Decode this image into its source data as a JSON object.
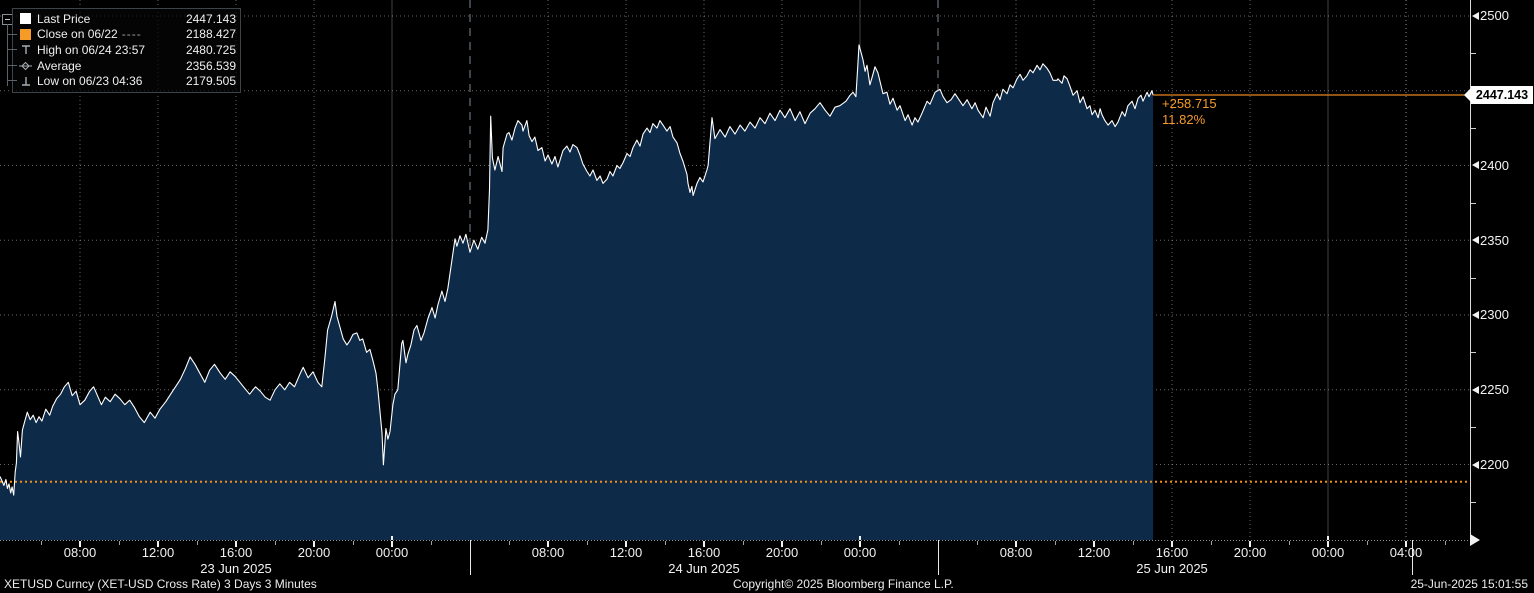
{
  "window": {
    "bg": "#000000"
  },
  "colors": {
    "accent_orange": "#f79b28",
    "close_line_orange": "#ef8d1c",
    "last_line_orange": "#e8871e",
    "area_fill_navy": "#0e2a49",
    "price_line_white": "#ffffff",
    "grid_dot": "rgba(255,255,255,0.40)",
    "midnight_line": "rgba(160,170,180,0.38)",
    "day_separator": "rgba(165,180,200,0.75)",
    "axis_white": "#f2f2f2"
  },
  "legend": {
    "rows": [
      {
        "icon": "white-square",
        "icon_color": "#ffffff",
        "label": "Last Price",
        "dashes": "",
        "value": "2447.143"
      },
      {
        "icon": "orange-square",
        "icon_color": "#f79b28",
        "label": "Close on 06/22",
        "dashes": "----",
        "value": "2188.427"
      },
      {
        "icon": "high-marker",
        "icon_color": "#a7adb5",
        "label": "High on 06/24 23:57",
        "dashes": "",
        "value": "2480.725"
      },
      {
        "icon": "average-marker",
        "icon_color": "#a7adb5",
        "label": "Average",
        "dashes": "",
        "value": "2356.539"
      },
      {
        "icon": "low-marker",
        "icon_color": "#a7adb5",
        "label": "Low on 06/23 04:36",
        "dashes": "",
        "value": "2179.505"
      }
    ]
  },
  "annotation": {
    "change": "+258.715",
    "percent": "11.82%"
  },
  "price_tag": {
    "value": "2447.143"
  },
  "footer": {
    "left": "XETUSD Curncy (XET-USD Cross Rate) 3 Days 3 Minutes",
    "center": "Copyright© 2025 Bloomberg Finance L.P.",
    "right": "25-Jun-2025 15:01:55"
  },
  "chart_data": {
    "type": "area",
    "title": "XETUSD Curncy (XET-USD Cross Rate) 3 Days 3 Minutes",
    "x_unit": "hours since 2025-06-23 00:00",
    "x_window": [
      3.9,
      79.28
    ],
    "y_window": [
      2149.5,
      2510.7
    ],
    "last_price": 2447.143,
    "close_price": 2188.427,
    "high": 2480.725,
    "high_time": "06/24 23:57",
    "average": 2356.539,
    "low": 2179.505,
    "low_time": "06/23 04:36",
    "grid": true,
    "legend_position": "top-left",
    "y_gridlines": [
      2200,
      2250,
      2300,
      2350,
      2400,
      2450,
      2500
    ],
    "y_ticks_major": [
      {
        "v": 2500,
        "label": "2500"
      },
      {
        "v": 2400,
        "label": "2400"
      },
      {
        "v": 2350,
        "label": "2350"
      },
      {
        "v": 2300,
        "label": "2300"
      },
      {
        "v": 2250,
        "label": "2250"
      },
      {
        "v": 2200,
        "label": "2200"
      }
    ],
    "y_ticks_minor": [
      2475,
      2425,
      2375,
      2325,
      2275,
      2225,
      2175
    ],
    "x_ticks": [
      {
        "t": 8,
        "label": "08:00"
      },
      {
        "t": 12,
        "label": "12:00"
      },
      {
        "t": 16,
        "label": "16:00"
      },
      {
        "t": 20,
        "label": "20:00"
      },
      {
        "t": 24,
        "label": "00:00"
      },
      {
        "t": 32,
        "label": "08:00"
      },
      {
        "t": 36,
        "label": "12:00"
      },
      {
        "t": 40,
        "label": "16:00"
      },
      {
        "t": 44,
        "label": "20:00"
      },
      {
        "t": 48,
        "label": "00:00"
      },
      {
        "t": 56,
        "label": "08:00"
      },
      {
        "t": 60,
        "label": "12:00"
      },
      {
        "t": 64,
        "label": "16:00"
      },
      {
        "t": 68,
        "label": "20:00"
      },
      {
        "t": 72,
        "label": "00:00"
      },
      {
        "t": 76,
        "label": "04:00"
      }
    ],
    "x_ticks_minor": [
      6,
      10,
      14,
      18,
      22,
      26,
      30,
      34,
      38,
      42,
      46,
      50,
      54,
      58,
      62,
      66,
      70,
      74,
      78
    ],
    "midnight_lines": [
      24,
      48,
      72
    ],
    "day_separators": [
      28,
      52
    ],
    "dotted_separators": [
      76
    ],
    "strip_separators": [
      28,
      52,
      76.3
    ],
    "date_labels": [
      {
        "t": 16,
        "label": "23 Jun 2025"
      },
      {
        "t": 40,
        "label": "24 Jun 2025"
      },
      {
        "t": 64,
        "label": "25 Jun 2025"
      }
    ],
    "series": [
      [
        3.9,
        2192
      ],
      [
        4.0,
        2189
      ],
      [
        4.1,
        2186
      ],
      [
        4.2,
        2190
      ],
      [
        4.28,
        2184
      ],
      [
        4.36,
        2187
      ],
      [
        4.45,
        2181
      ],
      [
        4.52,
        2185
      ],
      [
        4.6,
        2179.5
      ],
      [
        4.68,
        2195
      ],
      [
        4.74,
        2201
      ],
      [
        4.8,
        2222
      ],
      [
        4.87,
        2215
      ],
      [
        4.95,
        2205
      ],
      [
        5.05,
        2223
      ],
      [
        5.15,
        2228
      ],
      [
        5.3,
        2235
      ],
      [
        5.45,
        2230
      ],
      [
        5.6,
        2233
      ],
      [
        5.75,
        2228
      ],
      [
        5.9,
        2232
      ],
      [
        6.05,
        2229
      ],
      [
        6.25,
        2237
      ],
      [
        6.45,
        2233
      ],
      [
        6.6,
        2239
      ],
      [
        6.8,
        2244
      ],
      [
        7.0,
        2247
      ],
      [
        7.2,
        2252
      ],
      [
        7.4,
        2255
      ],
      [
        7.6,
        2246
      ],
      [
        7.8,
        2249
      ],
      [
        8.0,
        2240
      ],
      [
        8.25,
        2243
      ],
      [
        8.5,
        2249
      ],
      [
        8.7,
        2252
      ],
      [
        8.9,
        2246
      ],
      [
        9.1,
        2240
      ],
      [
        9.3,
        2245
      ],
      [
        9.55,
        2242
      ],
      [
        9.8,
        2247
      ],
      [
        10.05,
        2244
      ],
      [
        10.3,
        2240
      ],
      [
        10.55,
        2243
      ],
      [
        10.8,
        2238
      ],
      [
        11.05,
        2232
      ],
      [
        11.3,
        2228
      ],
      [
        11.6,
        2235
      ],
      [
        11.85,
        2231
      ],
      [
        12.1,
        2237
      ],
      [
        12.4,
        2242
      ],
      [
        12.65,
        2247
      ],
      [
        12.9,
        2252
      ],
      [
        13.15,
        2257
      ],
      [
        13.4,
        2264
      ],
      [
        13.65,
        2272
      ],
      [
        13.9,
        2267
      ],
      [
        14.15,
        2261
      ],
      [
        14.4,
        2255
      ],
      [
        14.65,
        2263
      ],
      [
        14.9,
        2267
      ],
      [
        15.2,
        2261
      ],
      [
        15.45,
        2257
      ],
      [
        15.7,
        2262
      ],
      [
        15.95,
        2259
      ],
      [
        16.2,
        2255
      ],
      [
        16.45,
        2251
      ],
      [
        16.7,
        2247
      ],
      [
        17.0,
        2252
      ],
      [
        17.25,
        2249
      ],
      [
        17.5,
        2245
      ],
      [
        17.75,
        2243
      ],
      [
        18.0,
        2250
      ],
      [
        18.25,
        2254
      ],
      [
        18.5,
        2250
      ],
      [
        18.75,
        2255
      ],
      [
        19.0,
        2252
      ],
      [
        19.3,
        2261
      ],
      [
        19.45,
        2265
      ],
      [
        19.7,
        2258
      ],
      [
        19.95,
        2262
      ],
      [
        20.2,
        2255
      ],
      [
        20.4,
        2252
      ],
      [
        20.55,
        2270
      ],
      [
        20.7,
        2290
      ],
      [
        20.9,
        2299
      ],
      [
        21.08,
        2309
      ],
      [
        21.18,
        2299
      ],
      [
        21.33,
        2292
      ],
      [
        21.5,
        2284
      ],
      [
        21.69,
        2280
      ],
      [
        21.85,
        2283
      ],
      [
        22.0,
        2287
      ],
      [
        22.2,
        2288
      ],
      [
        22.35,
        2283
      ],
      [
        22.5,
        2284
      ],
      [
        22.7,
        2275
      ],
      [
        22.87,
        2277
      ],
      [
        23.03,
        2269
      ],
      [
        23.18,
        2261
      ],
      [
        23.28,
        2250
      ],
      [
        23.38,
        2236
      ],
      [
        23.49,
        2221
      ],
      [
        23.56,
        2199.8
      ],
      [
        23.69,
        2224
      ],
      [
        23.79,
        2217
      ],
      [
        23.9,
        2222
      ],
      [
        24.05,
        2240
      ],
      [
        24.15,
        2247
      ],
      [
        24.3,
        2250
      ],
      [
        24.5,
        2281
      ],
      [
        24.56,
        2283
      ],
      [
        24.72,
        2268
      ],
      [
        24.82,
        2274
      ],
      [
        24.97,
        2280
      ],
      [
        25.13,
        2290
      ],
      [
        25.28,
        2293
      ],
      [
        25.49,
        2283
      ],
      [
        25.64,
        2288
      ],
      [
        25.85,
        2298
      ],
      [
        26.05,
        2305
      ],
      [
        26.21,
        2298
      ],
      [
        26.36,
        2307
      ],
      [
        26.56,
        2316
      ],
      [
        26.72,
        2309
      ],
      [
        26.87,
        2318
      ],
      [
        27.08,
        2337
      ],
      [
        27.23,
        2351
      ],
      [
        27.33,
        2346
      ],
      [
        27.49,
        2353
      ],
      [
        27.64,
        2348
      ],
      [
        27.79,
        2354
      ],
      [
        28.0,
        2342
      ],
      [
        28.2,
        2350
      ],
      [
        28.4,
        2344
      ],
      [
        28.6,
        2352
      ],
      [
        28.77,
        2348
      ],
      [
        28.92,
        2357
      ],
      [
        29.0,
        2384
      ],
      [
        29.06,
        2433
      ],
      [
        29.15,
        2405
      ],
      [
        29.28,
        2397
      ],
      [
        29.44,
        2406
      ],
      [
        29.64,
        2396
      ],
      [
        29.7,
        2412
      ],
      [
        29.9,
        2421
      ],
      [
        30.0,
        2422
      ],
      [
        30.15,
        2417
      ],
      [
        30.31,
        2425
      ],
      [
        30.46,
        2430
      ],
      [
        30.67,
        2427
      ],
      [
        30.72,
        2423
      ],
      [
        30.92,
        2430
      ],
      [
        31.03,
        2420
      ],
      [
        31.18,
        2416
      ],
      [
        31.33,
        2419
      ],
      [
        31.49,
        2410
      ],
      [
        31.69,
        2412
      ],
      [
        31.85,
        2403
      ],
      [
        32.0,
        2407
      ],
      [
        32.2,
        2401
      ],
      [
        32.36,
        2406
      ],
      [
        32.51,
        2399
      ],
      [
        32.77,
        2410
      ],
      [
        32.97,
        2413
      ],
      [
        33.13,
        2409
      ],
      [
        33.28,
        2414
      ],
      [
        33.49,
        2412
      ],
      [
        33.64,
        2407
      ],
      [
        33.79,
        2401
      ],
      [
        34.0,
        2396
      ],
      [
        34.15,
        2393
      ],
      [
        34.31,
        2397
      ],
      [
        34.51,
        2390
      ],
      [
        34.67,
        2393
      ],
      [
        34.82,
        2388
      ],
      [
        35.03,
        2391
      ],
      [
        35.18,
        2396
      ],
      [
        35.33,
        2393
      ],
      [
        35.54,
        2400
      ],
      [
        35.69,
        2398
      ],
      [
        35.85,
        2402
      ],
      [
        36.05,
        2408
      ],
      [
        36.21,
        2406
      ],
      [
        36.36,
        2412
      ],
      [
        36.56,
        2417
      ],
      [
        36.72,
        2413
      ],
      [
        36.87,
        2421
      ],
      [
        37.08,
        2425
      ],
      [
        37.23,
        2422
      ],
      [
        37.38,
        2428
      ],
      [
        37.59,
        2425
      ],
      [
        37.74,
        2430
      ],
      [
        37.9,
        2427
      ],
      [
        38.1,
        2423
      ],
      [
        38.26,
        2426
      ],
      [
        38.41,
        2419
      ],
      [
        38.62,
        2415
      ],
      [
        38.77,
        2408
      ],
      [
        38.92,
        2403
      ],
      [
        39.13,
        2394
      ],
      [
        39.18,
        2388
      ],
      [
        39.28,
        2382
      ],
      [
        39.38,
        2386
      ],
      [
        39.44,
        2380
      ],
      [
        39.64,
        2388
      ],
      [
        39.79,
        2392
      ],
      [
        39.95,
        2389
      ],
      [
        40.15,
        2397
      ],
      [
        40.21,
        2400
      ],
      [
        40.41,
        2432
      ],
      [
        40.56,
        2418
      ],
      [
        40.82,
        2424
      ],
      [
        41.08,
        2419
      ],
      [
        41.33,
        2426
      ],
      [
        41.59,
        2421
      ],
      [
        41.85,
        2427
      ],
      [
        42.1,
        2423
      ],
      [
        42.36,
        2429
      ],
      [
        42.62,
        2425
      ],
      [
        42.87,
        2432
      ],
      [
        43.13,
        2428
      ],
      [
        43.38,
        2435
      ],
      [
        43.64,
        2430
      ],
      [
        43.9,
        2437
      ],
      [
        44.15,
        2432
      ],
      [
        44.41,
        2438
      ],
      [
        44.67,
        2430
      ],
      [
        44.92,
        2436
      ],
      [
        45.18,
        2428
      ],
      [
        45.44,
        2435
      ],
      [
        45.69,
        2438
      ],
      [
        45.95,
        2442
      ],
      [
        46.21,
        2437
      ],
      [
        46.46,
        2433
      ],
      [
        46.72,
        2439
      ],
      [
        46.97,
        2440
      ],
      [
        47.28,
        2443
      ],
      [
        47.49,
        2447
      ],
      [
        47.64,
        2449
      ],
      [
        47.79,
        2446
      ],
      [
        47.9,
        2470
      ],
      [
        47.95,
        2480.7
      ],
      [
        48.15,
        2471
      ],
      [
        48.26,
        2463
      ],
      [
        48.36,
        2467
      ],
      [
        48.51,
        2454
      ],
      [
        48.62,
        2459
      ],
      [
        48.77,
        2466
      ],
      [
        48.92,
        2462
      ],
      [
        49.03,
        2456
      ],
      [
        49.18,
        2448
      ],
      [
        49.38,
        2449
      ],
      [
        49.54,
        2441
      ],
      [
        49.69,
        2445
      ],
      [
        49.9,
        2437
      ],
      [
        50.05,
        2440
      ],
      [
        50.31,
        2430
      ],
      [
        50.46,
        2434
      ],
      [
        50.67,
        2427
      ],
      [
        50.82,
        2432
      ],
      [
        50.97,
        2429
      ],
      [
        51.18,
        2435
      ],
      [
        51.44,
        2443
      ],
      [
        51.59,
        2441
      ],
      [
        51.85,
        2449
      ],
      [
        52.1,
        2451
      ],
      [
        52.26,
        2446
      ],
      [
        52.46,
        2442
      ],
      [
        52.67,
        2444
      ],
      [
        52.87,
        2448
      ],
      [
        53.13,
        2443
      ],
      [
        53.28,
        2440
      ],
      [
        53.49,
        2444
      ],
      [
        53.74,
        2438
      ],
      [
        53.9,
        2442
      ],
      [
        54.05,
        2437
      ],
      [
        54.31,
        2432
      ],
      [
        54.46,
        2439
      ],
      [
        54.67,
        2433
      ],
      [
        54.82,
        2442
      ],
      [
        55.03,
        2448
      ],
      [
        55.18,
        2444
      ],
      [
        55.33,
        2451
      ],
      [
        55.54,
        2448
      ],
      [
        55.69,
        2454
      ],
      [
        55.85,
        2452
      ],
      [
        56.05,
        2458
      ],
      [
        56.21,
        2461
      ],
      [
        56.36,
        2457
      ],
      [
        56.56,
        2460
      ],
      [
        56.72,
        2464
      ],
      [
        56.87,
        2462
      ],
      [
        57.08,
        2467
      ],
      [
        57.23,
        2464
      ],
      [
        57.38,
        2468
      ],
      [
        57.59,
        2465
      ],
      [
        57.74,
        2462
      ],
      [
        57.9,
        2457
      ],
      [
        58.1,
        2457
      ],
      [
        58.15,
        2458
      ],
      [
        58.36,
        2455
      ],
      [
        58.46,
        2460
      ],
      [
        58.62,
        2458
      ],
      [
        58.77,
        2453
      ],
      [
        58.92,
        2447
      ],
      [
        59.13,
        2450
      ],
      [
        59.28,
        2442
      ],
      [
        59.44,
        2446
      ],
      [
        59.64,
        2438
      ],
      [
        59.79,
        2440
      ],
      [
        59.9,
        2434
      ],
      [
        60.05,
        2437
      ],
      [
        60.21,
        2432
      ],
      [
        60.31,
        2438
      ],
      [
        60.41,
        2434
      ],
      [
        60.56,
        2430
      ],
      [
        60.72,
        2427
      ],
      [
        60.92,
        2430
      ],
      [
        61.08,
        2426
      ],
      [
        61.23,
        2429
      ],
      [
        61.44,
        2436
      ],
      [
        61.59,
        2433
      ],
      [
        61.74,
        2440
      ],
      [
        61.95,
        2443
      ],
      [
        62.1,
        2438
      ],
      [
        62.26,
        2445
      ],
      [
        62.41,
        2447
      ],
      [
        62.51,
        2443
      ],
      [
        62.72,
        2449
      ],
      [
        62.82,
        2446
      ],
      [
        62.97,
        2450
      ],
      [
        63.03,
        2447.1
      ]
    ]
  }
}
